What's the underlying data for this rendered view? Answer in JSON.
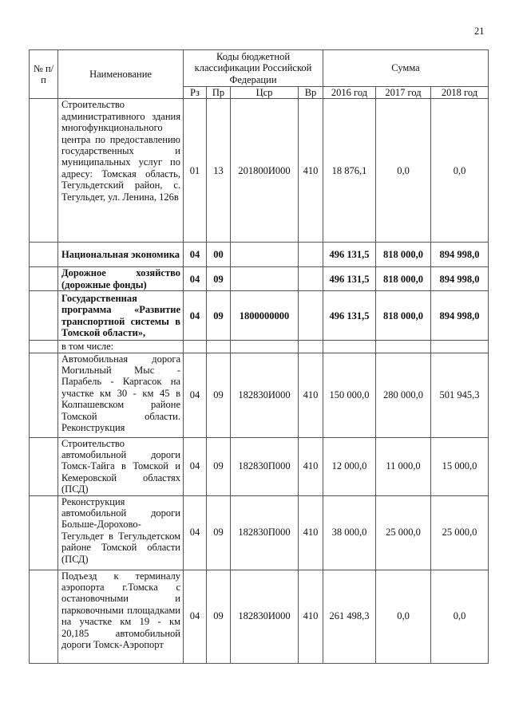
{
  "page_number": "21",
  "header": {
    "num": "№ п/п",
    "name": "Наименование",
    "codes": "Коды бюджетной классификации Российской Федерации",
    "sum": "Сумма",
    "rz": "Рз",
    "pr": "Пр",
    "csr": "Цср",
    "vr": "Вр",
    "y2016": "2016 год",
    "y2017": "2017 год",
    "y2018": "2018 год"
  },
  "rows": [
    {
      "name": "Строительство административного здания многофункционального центра по предоставлению государственных и муниципальных услуг по адресу: Томская область, Тегульдетский район, с. Тегульдет, ул. Ленина, 126в",
      "rz": "01",
      "pr": "13",
      "csr": "201800И000",
      "vr": "410",
      "y2016": "18 876,1",
      "y2017": "0,0",
      "y2018": "0,0",
      "bold": false
    },
    {
      "name": "Национальная экономика",
      "rz": "04",
      "pr": "00",
      "csr": "",
      "vr": "",
      "y2016": "496 131,5",
      "y2017": "818 000,0",
      "y2018": "894 998,0",
      "bold": true
    },
    {
      "name": "Дорожное хозяйство (дорожные фонды)",
      "rz": "04",
      "pr": "09",
      "csr": "",
      "vr": "",
      "y2016": "496 131,5",
      "y2017": "818 000,0",
      "y2018": "894 998,0",
      "bold": true
    },
    {
      "name": "Государственная программа «Развитие транспортной системы в Томской области»,",
      "rz": "04",
      "pr": "09",
      "csr": "1800000000",
      "vr": "",
      "y2016": "496 131,5",
      "y2017": "818 000,0",
      "y2018": "894 998,0",
      "bold": true
    },
    {
      "name": "в том числе:",
      "rz": "",
      "pr": "",
      "csr": "",
      "vr": "",
      "y2016": "",
      "y2017": "",
      "y2018": "",
      "bold": false
    },
    {
      "name": "Автомобильная дорога Могильный Мыс - Парабель - Каргасок на участке км 30 - км 45 в Колпашевском районе Томской области. Реконструкция",
      "rz": "04",
      "pr": "09",
      "csr": "182830И000",
      "vr": "410",
      "y2016": "150 000,0",
      "y2017": "280 000,0",
      "y2018": "501 945,3",
      "bold": false
    },
    {
      "name": "Строительство автомобильной дороги Томск-Тайга в Томской и Кемеровской областях (ПСД)",
      "rz": "04",
      "pr": "09",
      "csr": "182830П000",
      "vr": "410",
      "y2016": "12 000,0",
      "y2017": "11 000,0",
      "y2018": "15 000,0",
      "bold": false
    },
    {
      "name": "Реконструкция автомобильной дороги Больше-Дорохово-Тегульдет в Тегульдетском районе Томской области (ПСД)",
      "rz": "04",
      "pr": "09",
      "csr": "182830П000",
      "vr": "410",
      "y2016": "38 000,0",
      "y2017": "25 000,0",
      "y2018": "25 000,0",
      "bold": false
    },
    {
      "name": "Подъезд к терминалу аэропорта г.Томска с остановочными и парковочными площадками на участке км 19 - км 20,185 автомобильной дороги Томск-Аэропорт",
      "rz": "04",
      "pr": "09",
      "csr": "182830И000",
      "vr": "410",
      "y2016": "261 498,3",
      "y2017": "0,0",
      "y2018": "0,0",
      "bold": false
    }
  ]
}
